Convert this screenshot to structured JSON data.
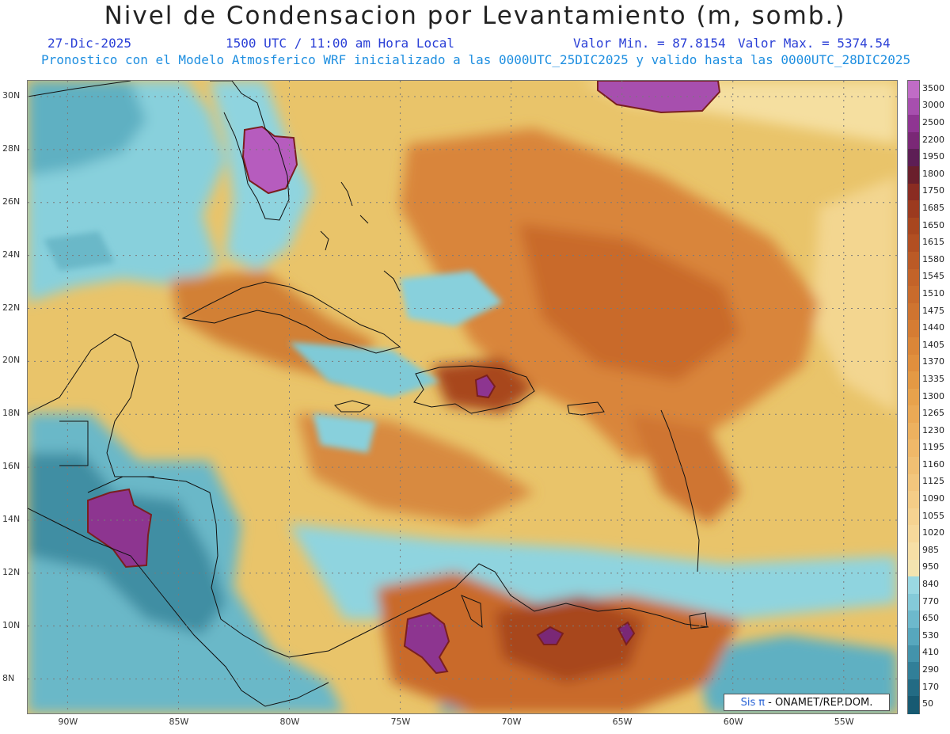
{
  "header": {
    "title": "Nivel de Condensacion por Levantamiento (m, somb.)",
    "date": "27-Dic-2025",
    "time": "1500 UTC / 11:00 am Hora Local",
    "min_label": "Valor Min. = 87.8154",
    "max_label": "Valor Max. = 5374.54",
    "model_line": "Pronostico con el Modelo Atmosferico WRF inicializado a las 0000UTC_25DIC2025 y valido hasta las  0000UTC_28DIC2025"
  },
  "axes": {
    "lat_labels": [
      "30N",
      "28N",
      "26N",
      "24N",
      "22N",
      "20N",
      "18N",
      "16N",
      "14N",
      "12N",
      "10N",
      "8N"
    ],
    "lon_labels": [
      "90W",
      "85W",
      "80W",
      "75W",
      "70W",
      "65W",
      "60W",
      "55W"
    ],
    "lat_values": [
      30,
      28,
      26,
      24,
      22,
      20,
      18,
      16,
      14,
      12,
      10,
      8
    ],
    "lon_values": [
      -90,
      -85,
      -80,
      -75,
      -70,
      -65,
      -60,
      -55
    ],
    "lat_range": [
      6.7,
      30.6
    ],
    "lon_range": [
      -91.8,
      -52.6
    ],
    "grid": true
  },
  "colorbar": {
    "labels": [
      "3500",
      "3000",
      "2500",
      "2200",
      "1950",
      "1800",
      "1750",
      "1685",
      "1650",
      "1615",
      "1580",
      "1545",
      "1510",
      "1475",
      "1440",
      "1405",
      "1370",
      "1335",
      "1300",
      "1265",
      "1230",
      "1195",
      "1160",
      "1125",
      "1090",
      "1055",
      "1020",
      "985",
      "950",
      "840",
      "770",
      "650",
      "530",
      "410",
      "290",
      "170",
      "50"
    ],
    "colors": [
      "#c06cc6",
      "#a74fae",
      "#8f3592",
      "#7a2876",
      "#5d1e55",
      "#6a1f2c",
      "#8a2c22",
      "#9c3a1f",
      "#a8461f",
      "#b24f22",
      "#bb5a26",
      "#c36329",
      "#c96b2c",
      "#cf7430",
      "#d57c33",
      "#db8638",
      "#e08f3d",
      "#e49944",
      "#e8a24c",
      "#eba955",
      "#edb15f",
      "#efb869",
      "#f0bf73",
      "#f2c67d",
      "#f4cd87",
      "#f5d391",
      "#f6d99b",
      "#f6dfa6",
      "#f3e4b0",
      "#9ad8e2",
      "#84cad8",
      "#6db9cc",
      "#57a7bd",
      "#4393ab",
      "#317f98",
      "#236b84",
      "#175a72"
    ]
  },
  "map": {
    "field_colors": {
      "base": "#e9c46a",
      "orange": "#d9853b",
      "dark_orange": "#b8561f",
      "brown": "#8f3a1e",
      "purple": "#8d3590",
      "light_purple": "#b65cbe",
      "cyan": "#88d0dc",
      "teal": "#4f9fb3",
      "dark_teal": "#2f7d92",
      "pale": "#f5dfa0"
    }
  },
  "footer": {
    "logo_sis": "Sis",
    "logo_pi": "π",
    "logo_text": " - ONAMET/REP.DOM."
  }
}
